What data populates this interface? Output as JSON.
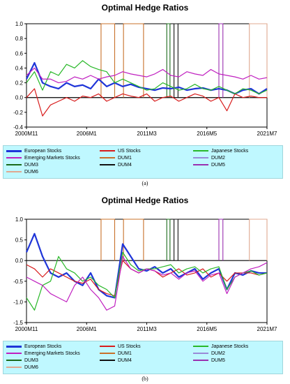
{
  "chart_data": [
    {
      "panel_label": "(a)",
      "type": "line",
      "title": "Optimal Hedge Ratios",
      "ylim": [
        -0.4,
        1.0
      ],
      "y_ticks": [
        "1.0",
        "0.8",
        "0.6",
        "0.4",
        "0.2",
        "0.0",
        "-0.2",
        "-0.4"
      ],
      "x_ticks": [
        "2000M11",
        "2006M1",
        "2011M3",
        "2016M5",
        "2021M7"
      ],
      "legend": [
        "European Stocks",
        "US Stocks",
        "Japanese Stocks",
        "Emerging Markets Stocks",
        "DUM1",
        "DUM2",
        "DUM3",
        "DUM4",
        "DUM5",
        "DUM6"
      ],
      "series": [
        {
          "name": "European Stocks",
          "color": "#1f35d8",
          "values": [
            0.25,
            0.47,
            0.2,
            0.15,
            0.12,
            0.2,
            0.15,
            0.17,
            0.12,
            0.25,
            0.15,
            0.2,
            0.15,
            0.18,
            0.14,
            0.12,
            0.1,
            0.13,
            0.12,
            0.14,
            0.1,
            0.12,
            0.13,
            0.1,
            0.12,
            0.1,
            0.05,
            0.1,
            0.12,
            0.05,
            0.12
          ]
        },
        {
          "name": "US Stocks",
          "color": "#d81c1c",
          "values": [
            0.0,
            0.12,
            -0.25,
            -0.1,
            -0.05,
            0.0,
            -0.05,
            0.02,
            0.0,
            0.05,
            -0.05,
            0.0,
            0.05,
            0.02,
            0.0,
            0.05,
            -0.05,
            0.0,
            0.02,
            -0.05,
            0.0,
            0.05,
            0.02,
            -0.05,
            0.0,
            -0.18,
            0.05,
            0.0,
            0.02,
            0.0,
            0.0
          ]
        },
        {
          "name": "Japanese Stocks",
          "color": "#28b828",
          "values": [
            0.2,
            0.35,
            0.1,
            0.35,
            0.3,
            0.45,
            0.4,
            0.5,
            0.42,
            0.38,
            0.35,
            0.2,
            0.25,
            0.2,
            0.15,
            0.1,
            0.12,
            0.2,
            0.15,
            0.1,
            0.12,
            0.18,
            0.12,
            0.1,
            0.15,
            0.1,
            0.05,
            0.12,
            0.1,
            0.05,
            0.1
          ]
        },
        {
          "name": "Emerging Markets Stocks",
          "color": "#c020c0",
          "values": [
            0.3,
            0.4,
            0.25,
            0.25,
            0.2,
            0.22,
            0.28,
            0.25,
            0.3,
            0.25,
            0.28,
            0.3,
            0.35,
            0.32,
            0.3,
            0.28,
            0.32,
            0.38,
            0.3,
            0.28,
            0.35,
            0.32,
            0.3,
            0.38,
            0.32,
            0.3,
            0.28,
            0.25,
            0.3,
            0.25,
            0.27
          ]
        }
      ],
      "dummies": [
        {
          "name": "DUM1",
          "color": "#c8702a",
          "periods": [
            [
              9.3,
              11.0
            ],
            [
              12.1,
              14.6
            ]
          ]
        },
        {
          "name": "DUM3",
          "color": "#1a6a1a",
          "periods": [
            [
              17.5,
              17.9
            ]
          ]
        },
        {
          "name": "DUM4",
          "color": "#111111",
          "periods": [
            [
              18.4,
              18.9
            ]
          ]
        },
        {
          "name": "DUM5",
          "color": "#9a30b0",
          "periods": [
            [
              24.0,
              24.5
            ]
          ]
        },
        {
          "name": "DUM6",
          "color": "#e0a890",
          "periods": [
            [
              27.8,
              30.0
            ]
          ]
        }
      ]
    },
    {
      "panel_label": "(b)",
      "type": "line",
      "title": "Optimal Hedge Ratios",
      "ylim": [
        -1.5,
        1.0
      ],
      "y_ticks": [
        "1.0",
        "0.5",
        "0.0",
        "-0.5",
        "-1.0",
        "-1.5"
      ],
      "x_ticks": [
        "2000M11",
        "2006M1",
        "2011M3",
        "2016M5",
        "2021M7"
      ],
      "legend": [
        "European Stocks",
        "US Stocks",
        "Japanese Stocks",
        "Emerging Markets Stocks",
        "DUM1",
        "DUM2",
        "DUM3",
        "DUM4",
        "DUM5",
        "DUM6"
      ],
      "series": [
        {
          "name": "European Stocks",
          "color": "#1f35d8",
          "values": [
            0.2,
            0.65,
            0.1,
            -0.3,
            -0.4,
            -0.3,
            -0.5,
            -0.6,
            -0.3,
            -0.7,
            -0.85,
            -0.9,
            0.4,
            0.1,
            -0.2,
            -0.25,
            -0.15,
            -0.3,
            -0.2,
            -0.4,
            -0.3,
            -0.2,
            -0.45,
            -0.3,
            -0.2,
            -0.7,
            -0.3,
            -0.35,
            -0.25,
            -0.3,
            -0.3
          ]
        },
        {
          "name": "US Stocks",
          "color": "#d81c1c",
          "values": [
            -0.1,
            -0.2,
            -0.4,
            -0.2,
            -0.3,
            -0.4,
            -0.5,
            -0.55,
            -0.45,
            -0.7,
            -0.8,
            -0.85,
            0.0,
            -0.2,
            -0.3,
            -0.2,
            -0.25,
            -0.4,
            -0.3,
            -0.2,
            -0.35,
            -0.3,
            -0.2,
            -0.4,
            -0.3,
            -0.5,
            -0.3,
            -0.3,
            -0.3,
            -0.35,
            -0.3
          ]
        },
        {
          "name": "Japanese Stocks",
          "color": "#28b828",
          "values": [
            -0.9,
            -1.2,
            -0.6,
            -0.5,
            0.1,
            -0.2,
            -0.3,
            -0.5,
            -0.4,
            -0.6,
            -0.7,
            -0.9,
            0.2,
            -0.1,
            -0.25,
            -0.2,
            -0.2,
            -0.15,
            -0.1,
            -0.3,
            -0.2,
            -0.15,
            -0.3,
            -0.2,
            -0.15,
            -0.7,
            -0.4,
            -0.3,
            -0.25,
            -0.35,
            -0.3
          ]
        },
        {
          "name": "Emerging Markets Stocks",
          "color": "#c020c0",
          "values": [
            -0.4,
            -0.5,
            -0.6,
            -0.8,
            -0.9,
            -1.0,
            -0.6,
            -0.4,
            -0.7,
            -0.9,
            -1.2,
            -1.1,
            0.1,
            -0.2,
            -0.3,
            -0.2,
            -0.25,
            -0.35,
            -0.3,
            -0.45,
            -0.3,
            -0.25,
            -0.5,
            -0.35,
            -0.3,
            -0.8,
            -0.4,
            -0.3,
            -0.2,
            -0.15,
            -0.05
          ]
        }
      ],
      "dummies": [
        {
          "name": "DUM1",
          "color": "#c8702a",
          "periods": [
            [
              9.3,
              11.0
            ],
            [
              12.1,
              14.6
            ]
          ]
        },
        {
          "name": "DUM3",
          "color": "#1a6a1a",
          "periods": [
            [
              17.5,
              17.9
            ]
          ]
        },
        {
          "name": "DUM4",
          "color": "#111111",
          "periods": [
            [
              18.4,
              18.9
            ]
          ]
        },
        {
          "name": "DUM5",
          "color": "#9a30b0",
          "periods": [
            [
              24.0,
              24.5
            ]
          ]
        },
        {
          "name": "DUM6",
          "color": "#e0a890",
          "periods": [
            [
              27.8,
              30.0
            ]
          ]
        }
      ]
    }
  ],
  "legend_colors": {
    "European Stocks": "#1f35d8",
    "US Stocks": "#d81c1c",
    "Japanese Stocks": "#28b828",
    "Emerging Markets Stocks": "#c020c0",
    "DUM1": "#c8702a",
    "DUM2": "#9a8ad8",
    "DUM3": "#1a6a1a",
    "DUM4": "#111111",
    "DUM5": "#9a30b0",
    "DUM6": "#e0a890"
  }
}
